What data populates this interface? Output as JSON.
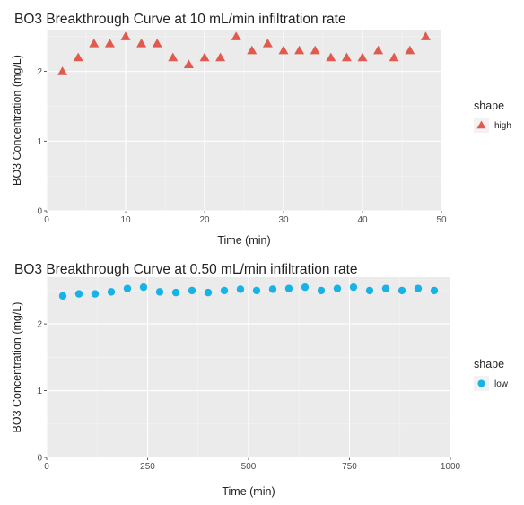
{
  "chart_data": [
    {
      "type": "scatter",
      "title": "BO3 Breakthrough Curve at 10 mL/min infiltration rate",
      "xlabel": "Time (min)",
      "ylabel": "BO3 Concentration (mg/L)",
      "xlim": [
        0,
        50
      ],
      "ylim": [
        0,
        2.6
      ],
      "xticks": [
        0,
        10,
        20,
        30,
        40,
        50
      ],
      "yticks": [
        0,
        1,
        2
      ],
      "grid": true,
      "legend": {
        "title": "shape",
        "position": "right"
      },
      "series": [
        {
          "name": "high",
          "marker": "triangle",
          "color": "#e05a4e",
          "x": [
            2,
            4,
            6,
            8,
            10,
            12,
            14,
            16,
            18,
            20,
            22,
            24,
            26,
            28,
            30,
            32,
            34,
            36,
            38,
            40,
            42,
            44,
            46,
            48
          ],
          "y": [
            2.0,
            2.2,
            2.4,
            2.4,
            2.5,
            2.4,
            2.4,
            2.2,
            2.1,
            2.2,
            2.2,
            2.5,
            2.3,
            2.4,
            2.3,
            2.3,
            2.3,
            2.2,
            2.2,
            2.2,
            2.3,
            2.2,
            2.3,
            2.5
          ]
        }
      ]
    },
    {
      "type": "scatter",
      "title": "BO3 Breakthrough Curve at 0.50 mL/min infiltration rate",
      "xlabel": "Time (min)",
      "ylabel": "BO3 Concentration (mg/L)",
      "xlim": [
        0,
        1000
      ],
      "ylim": [
        0,
        2.7
      ],
      "xticks": [
        0,
        250,
        500,
        750,
        1000
      ],
      "yticks": [
        0,
        1,
        2
      ],
      "grid": true,
      "legend": {
        "title": "shape",
        "position": "right"
      },
      "series": [
        {
          "name": "low",
          "marker": "circle",
          "color": "#17b3e6",
          "x": [
            40,
            80,
            120,
            160,
            200,
            240,
            280,
            320,
            360,
            400,
            440,
            480,
            520,
            560,
            600,
            640,
            680,
            720,
            760,
            800,
            840,
            880,
            920,
            960
          ],
          "y": [
            2.42,
            2.45,
            2.45,
            2.48,
            2.53,
            2.55,
            2.48,
            2.47,
            2.5,
            2.47,
            2.5,
            2.52,
            2.5,
            2.52,
            2.53,
            2.55,
            2.5,
            2.53,
            2.55,
            2.5,
            2.53,
            2.5,
            2.53,
            2.5
          ]
        }
      ]
    }
  ]
}
